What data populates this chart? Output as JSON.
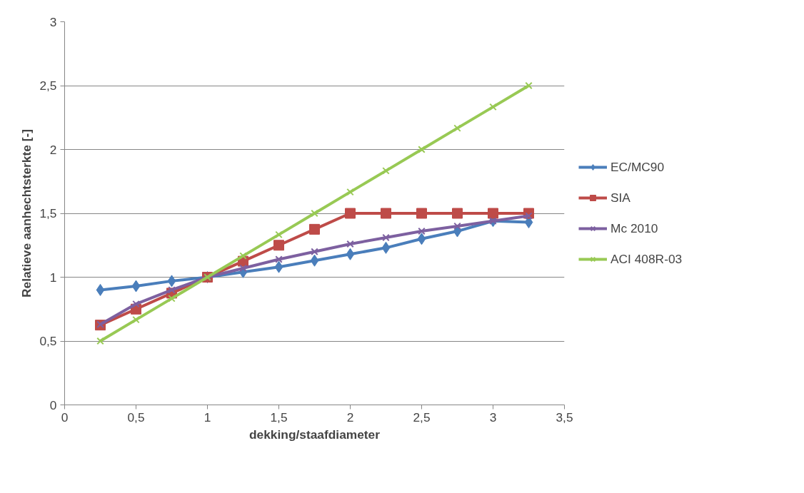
{
  "chart_data": {
    "type": "line",
    "xlabel": "dekking/staafdiameter",
    "ylabel": "Relatieve aanhechtsterkte [-]",
    "x": [
      0.25,
      0.5,
      0.75,
      1,
      1.25,
      1.5,
      1.75,
      2,
      2.25,
      2.5,
      2.75,
      3,
      3.25
    ],
    "series": [
      {
        "name": "EC/MC90",
        "color": "#4a7ebb",
        "marker": "diamond",
        "values": [
          0.9,
          0.93,
          0.97,
          1.0,
          1.04,
          1.08,
          1.13,
          1.18,
          1.23,
          1.3,
          1.36,
          1.44,
          1.43
        ]
      },
      {
        "name": "SIA",
        "color": "#be4b48",
        "marker": "square",
        "values": [
          0.625,
          0.75,
          0.875,
          1.0,
          1.125,
          1.25,
          1.375,
          1.5,
          1.5,
          1.5,
          1.5,
          1.5,
          1.5
        ]
      },
      {
        "name": "Mc 2010",
        "color": "#7d60a0",
        "marker": "cross",
        "values": [
          0.63,
          0.79,
          0.9,
          1.0,
          1.07,
          1.14,
          1.2,
          1.26,
          1.31,
          1.36,
          1.4,
          1.44,
          1.48
        ]
      },
      {
        "name": "ACI 408R-03",
        "color": "#98c954",
        "marker": "cross",
        "values": [
          0.5,
          0.667,
          0.833,
          1.0,
          1.167,
          1.333,
          1.5,
          1.667,
          1.833,
          2.0,
          2.167,
          2.333,
          2.5
        ]
      }
    ],
    "xlim": [
      0,
      3.5
    ],
    "xticks": [
      0,
      {
        "value": 0.5,
        "label": "0,5"
      },
      1,
      {
        "value": 1.5,
        "label": "1,5"
      },
      2,
      {
        "value": 2.5,
        "label": "2,5"
      },
      3,
      {
        "value": 3.5,
        "label": "3,5"
      }
    ],
    "ylim": [
      0,
      3
    ],
    "yticks": [
      0,
      {
        "value": 0.5,
        "label": "0,5"
      },
      1,
      {
        "value": 1.5,
        "label": "1,5"
      },
      2,
      {
        "value": 2.5,
        "label": "2,5"
      },
      3
    ],
    "grid": "y",
    "legend": "right",
    "line_style": "solid"
  }
}
